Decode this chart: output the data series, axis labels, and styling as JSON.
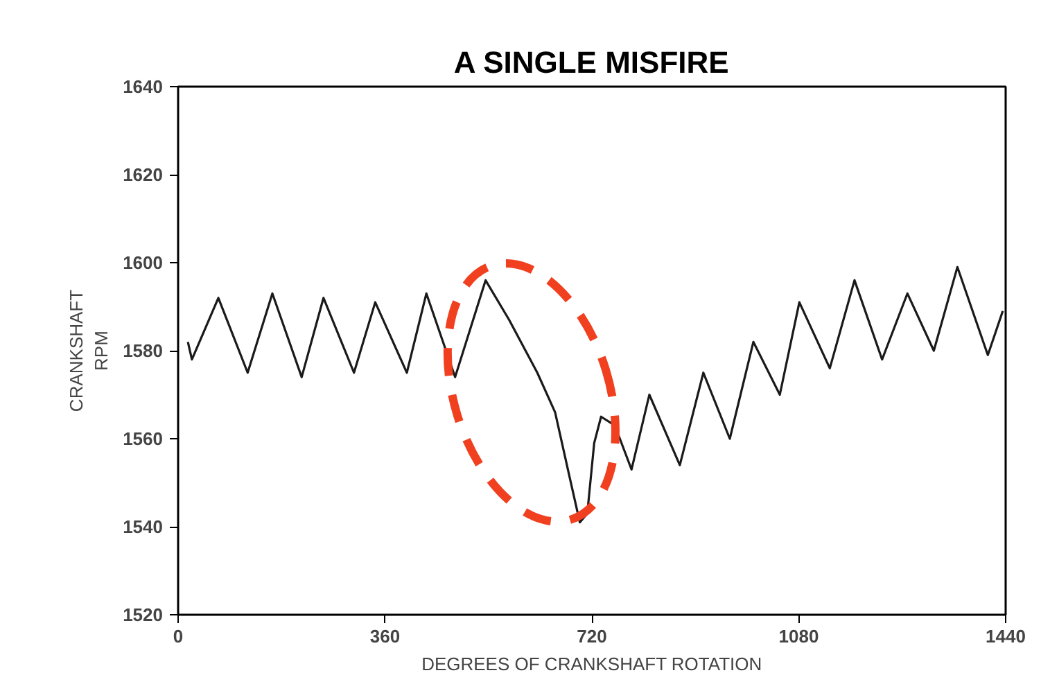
{
  "chart_data": {
    "type": "line",
    "title": "A SINGLE MISFIRE",
    "xlabel": "DEGREES OF CRANKSHAFT ROTATION",
    "ylabel": "CRANKSHAFT\nRPM",
    "xlim": [
      0,
      1440
    ],
    "ylim": [
      1520,
      1640
    ],
    "xticks": [
      0,
      360,
      720,
      1080,
      1440
    ],
    "yticks": [
      1520,
      1540,
      1560,
      1580,
      1600,
      1620,
      1640
    ],
    "grid": false,
    "marker": "none",
    "line_style": "solid",
    "series": [
      {
        "color": "#1a1a1a",
        "x": [
          17,
          24,
          70,
          121,
          164,
          215,
          253,
          306,
          343,
          398,
          432,
          482,
          535,
          576,
          625,
          656,
          680,
          699,
          712,
          724,
          736,
          760,
          789,
          820,
          873,
          914,
          960,
          1001,
          1047,
          1081,
          1134,
          1177,
          1225,
          1269,
          1315,
          1356,
          1409,
          1435
        ],
        "values": [
          1582,
          1578,
          1592,
          1575,
          1593,
          1574,
          1592,
          1575,
          1591,
          1575,
          1593,
          1574,
          1596,
          1587,
          1575,
          1566,
          1552,
          1541,
          1543,
          1559,
          1565,
          1563,
          1553,
          1570,
          1554,
          1575,
          1560,
          1582,
          1570,
          1591,
          1576,
          1596,
          1578,
          1593,
          1580,
          1599,
          1579,
          1589
        ]
      }
    ]
  }
}
